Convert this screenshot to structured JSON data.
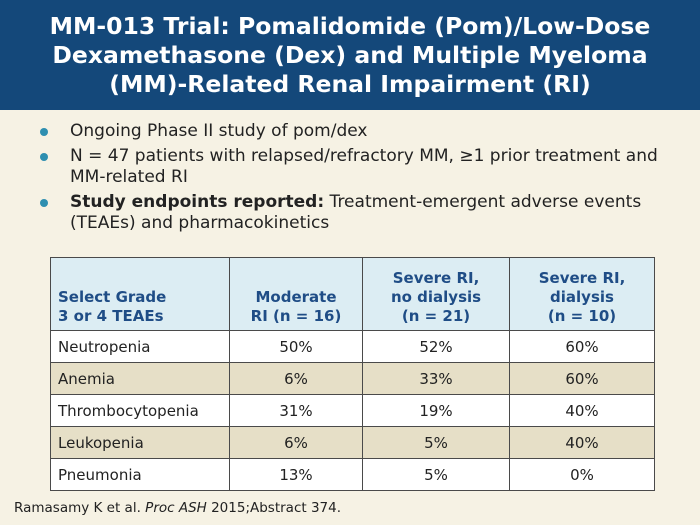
{
  "title": "MM-013 Trial: Pomalidomide (Pom)/Low-Dose Dexamethasone (Dex) and Multiple Myeloma (MM)-Related Renal Impairment (RI)",
  "bullets": {
    "b1": "Ongoing Phase II study of pom/dex",
    "b2": "N = 47 patients with relapsed/refractory MM, ≥1 prior treatment and MM-related RI",
    "b3_bold": "Study endpoints reported:",
    "b3_rest": " Treatment-emergent adverse events (TEAEs) and pharmacokinetics"
  },
  "table": {
    "headers": [
      [
        "Select Grade",
        "3 or 4 TEAEs"
      ],
      [
        "Moderate",
        "RI (n = 16)"
      ],
      [
        "Severe RI,",
        "no dialysis",
        "(n = 21)"
      ],
      [
        "Severe RI,",
        "dialysis",
        "(n = 10)"
      ]
    ],
    "rows": [
      [
        "Neutropenia",
        "50%",
        "52%",
        "60%"
      ],
      [
        "Anemia",
        "6%",
        "33%",
        "60%"
      ],
      [
        "Thrombocytopenia",
        "31%",
        "19%",
        "40%"
      ],
      [
        "Leukopenia",
        "6%",
        "5%",
        "40%"
      ],
      [
        "Pneumonia",
        "13%",
        "5%",
        "0%"
      ]
    ]
  },
  "citation": {
    "authors": "Ramasamy K et al. ",
    "journal": "Proc ASH",
    "rest": " 2015;Abstract 374."
  }
}
